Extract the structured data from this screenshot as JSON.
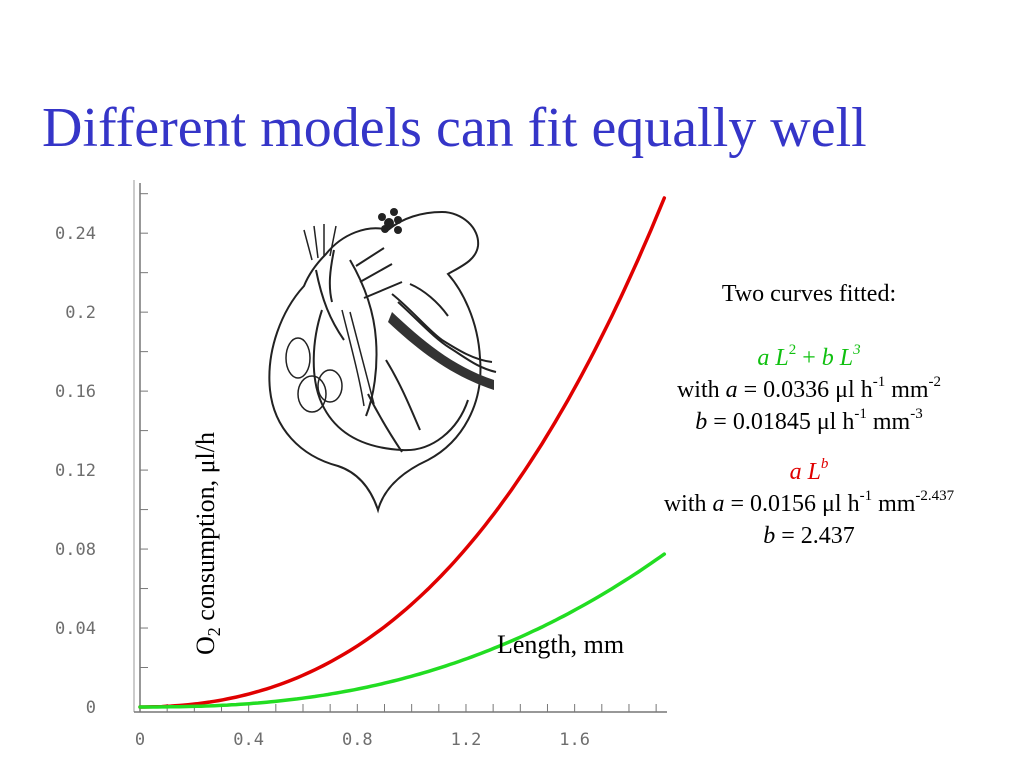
{
  "slide": {
    "title": "Different models can fit equally well"
  },
  "fit_panel": {
    "heading": "Two curves fitted:",
    "model1": {
      "formula": {
        "a": "a",
        "L": "L",
        "exp1": "2",
        "plus": " + ",
        "b": "b",
        "L2": "L",
        "exp2": "3"
      },
      "a_line": {
        "prefix": "with ",
        "var": "a",
        "value": " = 0.0336 μl h",
        "e1": "-1",
        "mid": " mm",
        "e2": "-2"
      },
      "b_line": {
        "var": "b",
        "value": " = 0.01845 μl h",
        "e1": "-1",
        "mid": " mm",
        "e2": "-3"
      },
      "color": "#10c010"
    },
    "model2": {
      "formula": {
        "a": "a",
        "L": "L",
        "exp": "b"
      },
      "a_line": {
        "prefix": "with ",
        "var": "a",
        "value": " = 0.0156 μl h",
        "e1": "-1",
        "mid": " mm",
        "e2": "-2.437"
      },
      "b_line": {
        "var": "b",
        "value": " = 2.437"
      },
      "color": "#e00000"
    }
  },
  "chart_data": {
    "type": "line",
    "title": "",
    "xlabel": "Length, mm",
    "ylabel": {
      "main": "O",
      "sub": "2",
      "rest": " consumption, μl/h"
    },
    "xlim": [
      0,
      1.94
    ],
    "ylim": [
      0,
      0.272
    ],
    "x_ticks": [
      "0",
      "0.4",
      "0.8",
      "1.2",
      "1.6"
    ],
    "y_ticks": [
      "0",
      "0.04",
      "0.08",
      "0.12",
      "0.16",
      "0.2",
      "0.24"
    ],
    "x_tick_values": [
      0,
      0.4,
      0.8,
      1.2,
      1.6
    ],
    "y_tick_values": [
      0,
      0.04,
      0.08,
      0.12,
      0.16,
      0.2,
      0.24
    ],
    "x_range": [
      0,
      1.93
    ],
    "series": [
      {
        "model": "a L^2 + b L^3",
        "a": 0.0336,
        "b": 0.01845,
        "color": "#e00000"
      },
      {
        "model": "a L^b",
        "a": 0.0156,
        "b": 2.437,
        "color": "#22dd22"
      }
    ]
  },
  "illustration": {
    "icon": "daphnia-illustration"
  }
}
